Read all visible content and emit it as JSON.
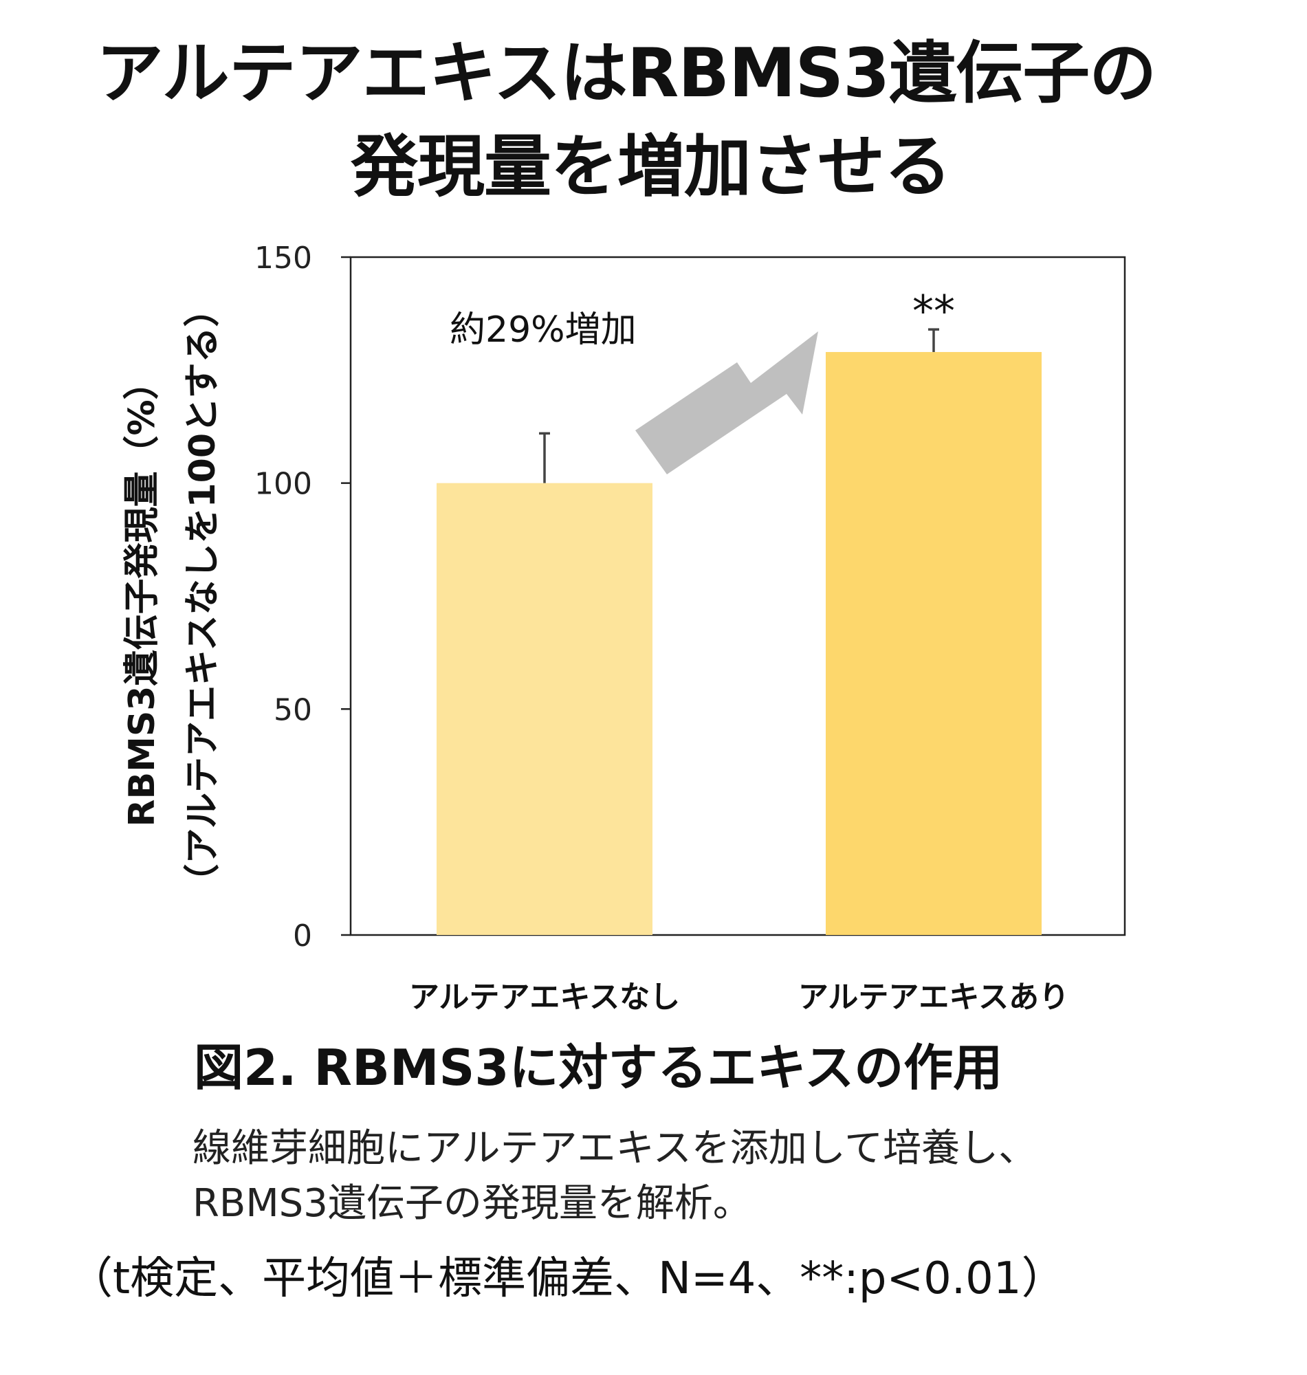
{
  "title": {
    "line1": "アルテアエキスはRBMS3遺伝子の",
    "line2": "発現量を増加させる"
  },
  "chart_data": {
    "type": "bar",
    "categories": [
      "アルテアエキスなし",
      "アルテアエキスあり"
    ],
    "values": [
      100,
      129
    ],
    "errors": [
      11,
      5
    ],
    "colors": [
      "#FDE49B",
      "#FDD76C"
    ],
    "ylabel_line1": "RBMS3遺伝子発現量（%）",
    "ylabel_line2": "（アルテアエキスなしを100とする）",
    "ylim": [
      0,
      150
    ],
    "yticks": [
      0,
      50,
      100,
      150
    ],
    "grid": false,
    "annotation": "約29%増加",
    "significance": "**",
    "arrow_color": "#BFBFBF"
  },
  "caption": "図2.  RBMS3に対するエキスの作用",
  "description": {
    "line1": "線維芽細胞にアルテアエキスを添加して培養し、",
    "line2": "RBMS3遺伝子の発現量を解析。"
  },
  "footnote": "（t検定、平均値＋標準偏差、N=4、**:p<0.01）"
}
